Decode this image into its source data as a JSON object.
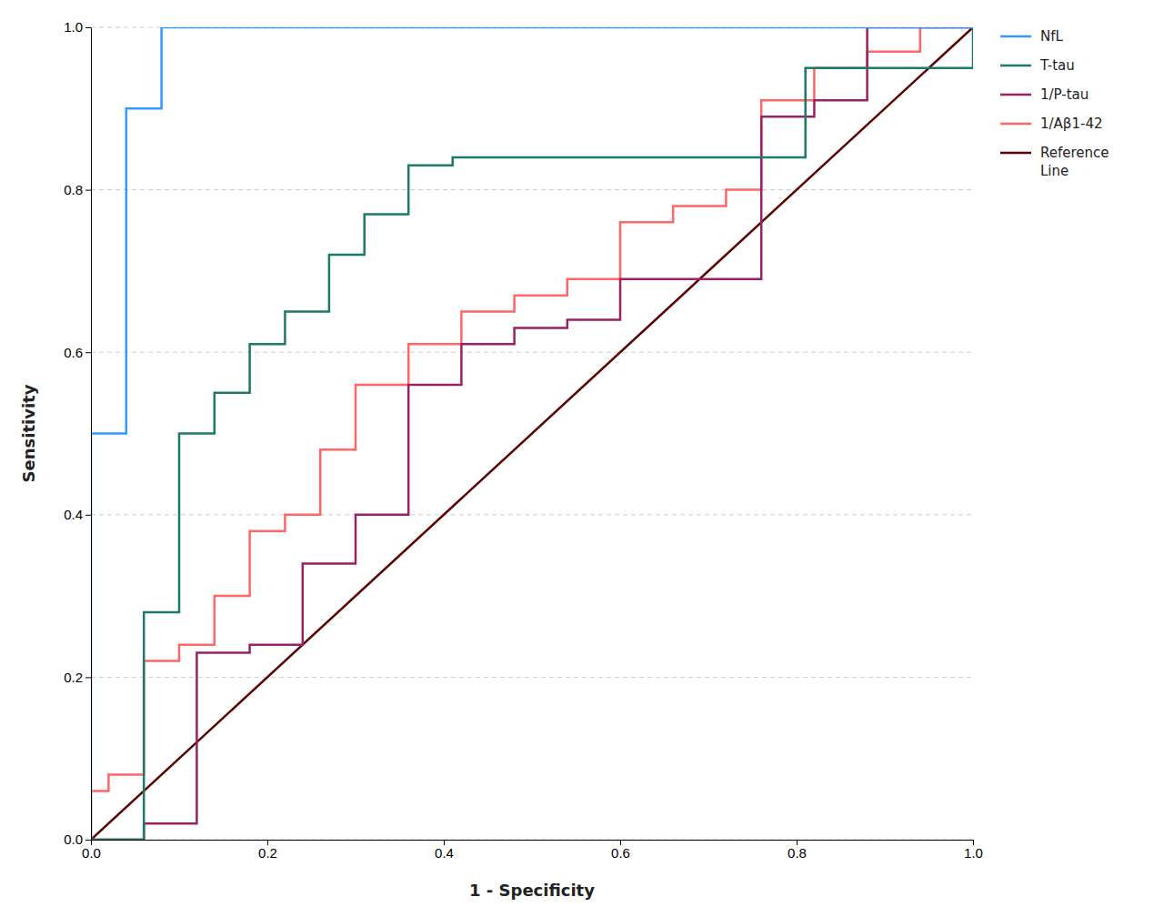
{
  "chart_data": {
    "type": "line",
    "xlabel": "1 - Specificity",
    "ylabel": "Sensitivity",
    "xlim": [
      0.0,
      1.0
    ],
    "ylim": [
      0.0,
      1.0
    ],
    "xticks": [
      {
        "value": 0,
        "label": "0.0"
      },
      0.2,
      0.4,
      0.6,
      0.8,
      {
        "value": 1,
        "label": "1.0"
      }
    ],
    "yticks": [
      {
        "value": 0,
        "label": "0.0"
      },
      0.2,
      0.4,
      0.6,
      0.8,
      {
        "value": 1,
        "label": "1.0"
      }
    ],
    "grid": "y",
    "legend": "upper right",
    "series": [
      {
        "name": "NfL",
        "color": "#3399FF",
        "x": [
          0.0,
          0.0,
          0.04,
          0.04,
          0.08,
          0.08,
          0.12,
          0.12,
          0.26,
          0.26,
          1.0
        ],
        "values": [
          0.0,
          0.5,
          0.5,
          0.9,
          0.9,
          1.0,
          1.0,
          1.0,
          1.0,
          1.0,
          1.0
        ]
      },
      {
        "name": "T-tau",
        "color": "#1B7A6A",
        "x": [
          0.0,
          0.0,
          0.06,
          0.06,
          0.1,
          0.1,
          0.14,
          0.14,
          0.18,
          0.18,
          0.22,
          0.22,
          0.27,
          0.27,
          0.31,
          0.31,
          0.36,
          0.36,
          0.41,
          0.41,
          0.76,
          0.76,
          0.81,
          0.81,
          1.0,
          1.0
        ],
        "values": [
          0.0,
          0.0,
          0.0,
          0.28,
          0.28,
          0.5,
          0.5,
          0.55,
          0.55,
          0.61,
          0.61,
          0.65,
          0.65,
          0.72,
          0.72,
          0.77,
          0.77,
          0.83,
          0.83,
          0.84,
          0.84,
          0.84,
          0.84,
          0.95,
          0.95,
          1.0
        ]
      },
      {
        "name": "1/P-tau",
        "color": "#992266",
        "x": [
          0.0,
          0.0,
          0.06,
          0.06,
          0.12,
          0.12,
          0.18,
          0.18,
          0.24,
          0.24,
          0.3,
          0.3,
          0.36,
          0.36,
          0.42,
          0.42,
          0.48,
          0.48,
          0.54,
          0.54,
          0.6,
          0.6,
          0.76,
          0.76,
          0.82,
          0.82,
          0.88,
          0.88,
          1.0,
          1.0
        ],
        "values": [
          0.0,
          0.0,
          0.0,
          0.02,
          0.02,
          0.23,
          0.23,
          0.24,
          0.24,
          0.34,
          0.34,
          0.4,
          0.4,
          0.56,
          0.56,
          0.61,
          0.61,
          0.63,
          0.63,
          0.64,
          0.64,
          0.69,
          0.69,
          0.89,
          0.89,
          0.91,
          0.91,
          1.0,
          1.0,
          1.0
        ]
      },
      {
        "name": "1/Aβ1-42",
        "color": "#FF6666",
        "x": [
          0.0,
          0.0,
          0.02,
          0.02,
          0.06,
          0.06,
          0.1,
          0.1,
          0.14,
          0.14,
          0.18,
          0.18,
          0.22,
          0.22,
          0.26,
          0.26,
          0.3,
          0.3,
          0.36,
          0.36,
          0.42,
          0.42,
          0.48,
          0.48,
          0.54,
          0.54,
          0.6,
          0.6,
          0.66,
          0.66,
          0.72,
          0.72,
          0.76,
          0.76,
          0.82,
          0.82,
          0.88,
          0.88,
          0.94,
          0.94,
          1.0,
          1.0
        ],
        "values": [
          0.0,
          0.06,
          0.06,
          0.08,
          0.08,
          0.22,
          0.22,
          0.24,
          0.24,
          0.3,
          0.3,
          0.38,
          0.38,
          0.4,
          0.4,
          0.48,
          0.48,
          0.56,
          0.56,
          0.61,
          0.61,
          0.65,
          0.65,
          0.67,
          0.67,
          0.69,
          0.69,
          0.76,
          0.76,
          0.78,
          0.78,
          0.8,
          0.8,
          0.91,
          0.91,
          0.95,
          0.95,
          0.97,
          0.97,
          1.0,
          1.0,
          1.0
        ]
      },
      {
        "name": "Reference\nLine",
        "color": "#5C0000",
        "x": [
          0,
          1
        ],
        "values": [
          0,
          1
        ]
      }
    ]
  }
}
